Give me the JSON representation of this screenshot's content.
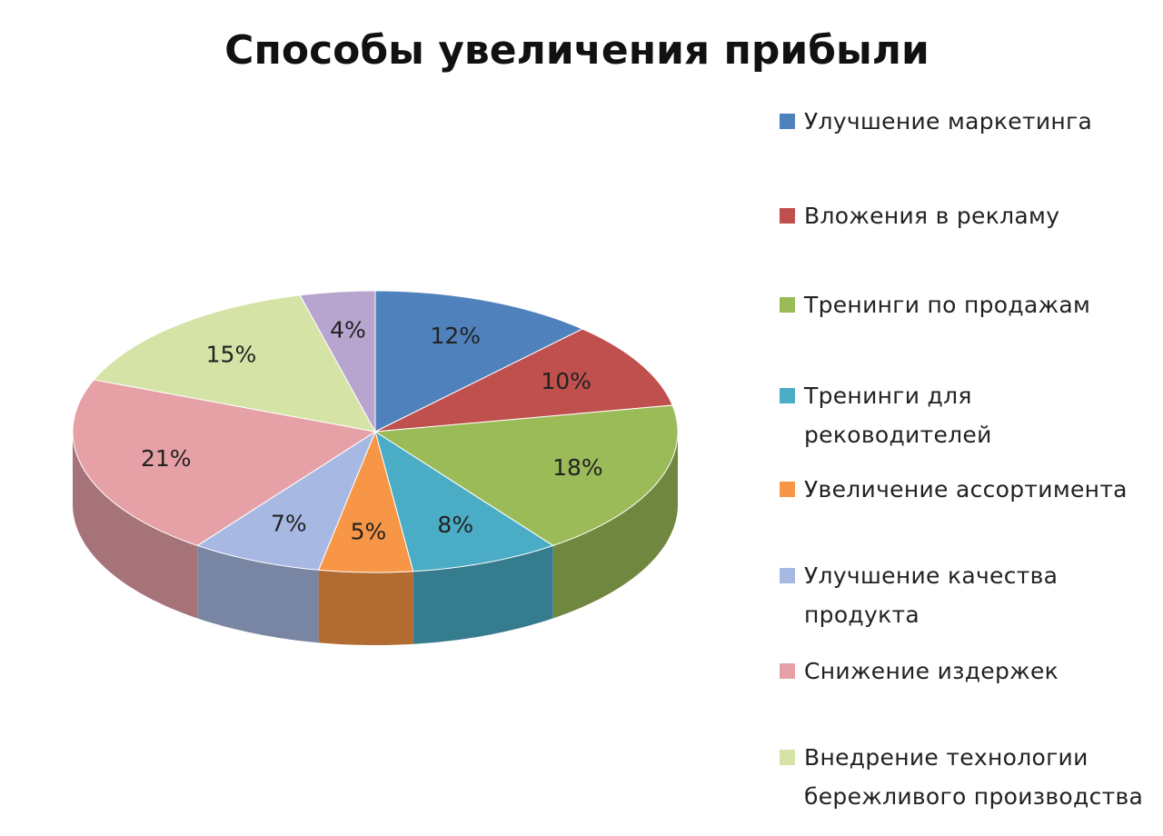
{
  "chart_data": {
    "type": "pie",
    "title": "Способы увеличения прибыли",
    "categories": [
      "Улучшение  маркетинга",
      "Вложения  в рекламу",
      "Тренинги  по продажам",
      "Тренинги  для\nрековoдителей",
      "Увеличение  ассортимента",
      "Улучшение  качества\nпродукта",
      "Снижение  издержек",
      "Внедрение  технологии\nбережливого  производства",
      null
    ],
    "values": [
      12,
      10,
      18,
      8,
      5,
      7,
      21,
      15,
      4
    ],
    "value_labels": [
      "12%",
      "10%",
      "18%",
      "8%",
      "5%",
      "7%",
      "21%",
      "15%",
      "4%"
    ],
    "colors": [
      "#4f81bd",
      "#c0504d",
      "#9bbb59",
      "#4bacc6",
      "#f79646",
      "#a7b9e3",
      "#e6a1a7",
      "#d5e3a6",
      "#b7a5cf"
    ],
    "legend": "right"
  }
}
